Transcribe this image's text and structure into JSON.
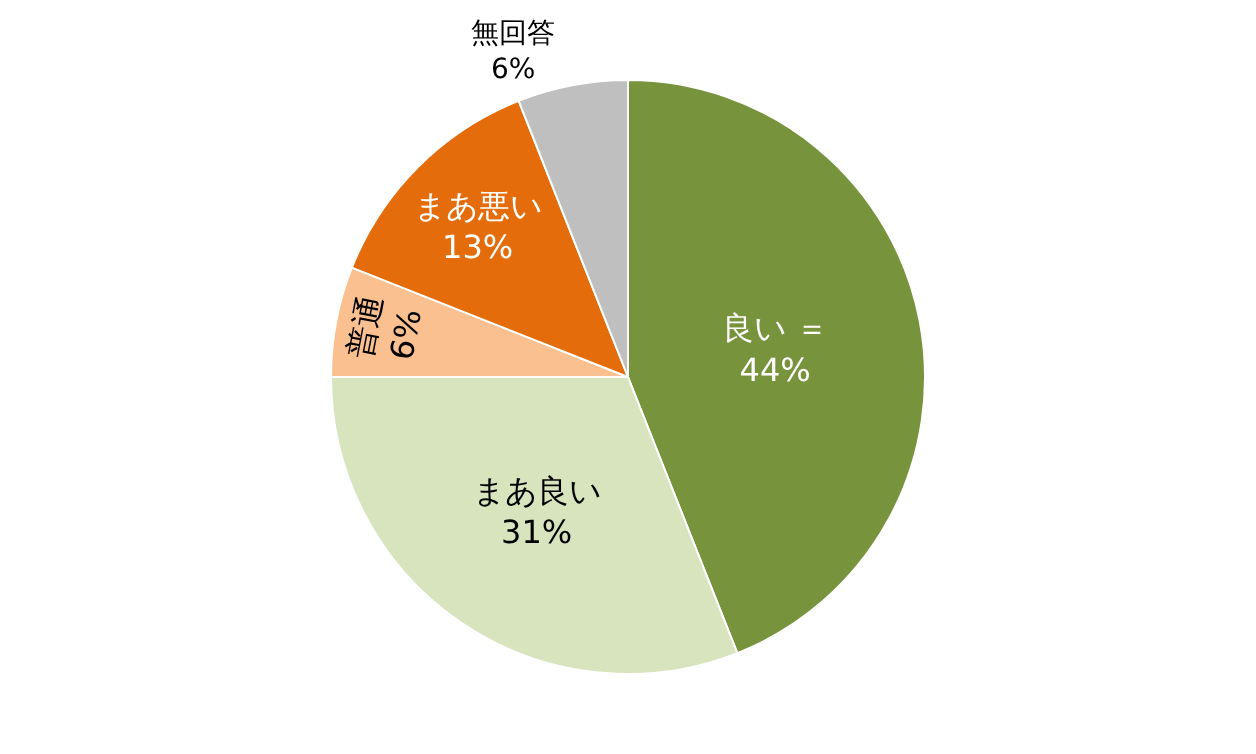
{
  "chart_data": {
    "type": "pie",
    "categories": [
      "良い ＝",
      "まあ良い",
      "普通",
      "まあ悪い",
      "無回答"
    ],
    "values": [
      44,
      31,
      6,
      13,
      6
    ],
    "value_labels": [
      "44%",
      "31%",
      "6%",
      "13%",
      "6%"
    ],
    "colors": [
      "#77933c",
      "#d7e4bd",
      "#fac090",
      "#e46c0a",
      "#bfbfbf"
    ],
    "legend": false
  }
}
